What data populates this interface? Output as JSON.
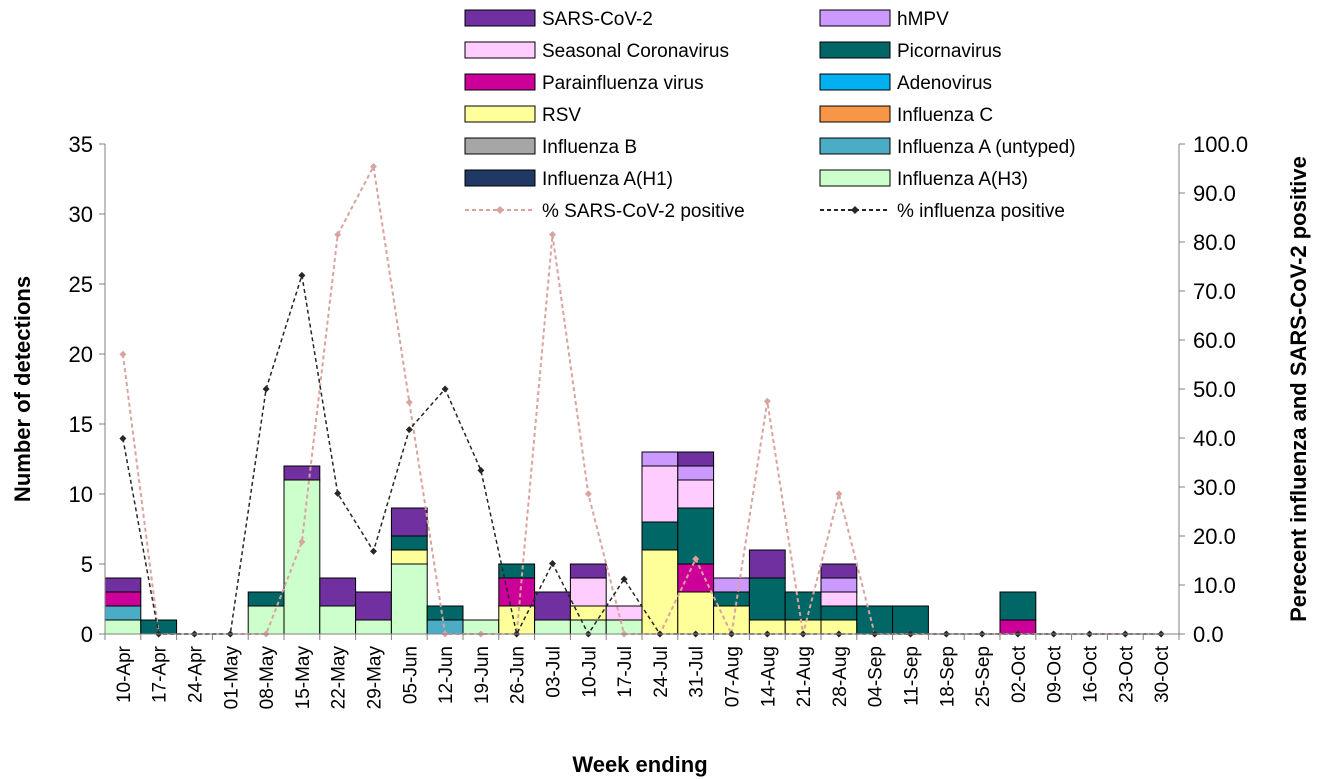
{
  "chart_data": {
    "type": "bar",
    "stacked": true,
    "xlabel": "Week ending",
    "ylabel": "Number of detections",
    "y2label": "Perecent influenza and SARS-CoV-2 positive",
    "ylim": [
      0,
      35
    ],
    "y2lim": [
      0,
      100
    ],
    "yticks": [
      "0",
      "5",
      "10",
      "15",
      "20",
      "25",
      "30",
      "35"
    ],
    "y2ticks": [
      "0.0",
      "10.0",
      "20.0",
      "30.0",
      "40.0",
      "50.0",
      "60.0",
      "70.0",
      "80.0",
      "90.0",
      "100.0"
    ],
    "grid": false,
    "legend_position": "top",
    "categories": [
      "10-Apr",
      "17-Apr",
      "24-Apr",
      "01-May",
      "08-May",
      "15-May",
      "22-May",
      "29-May",
      "05-Jun",
      "12-Jun",
      "19-Jun",
      "26-Jun",
      "03-Jul",
      "10-Jul",
      "17-Jul",
      "24-Jul",
      "31-Jul",
      "07-Aug",
      "14-Aug",
      "21-Aug",
      "28-Aug",
      "04-Sep",
      "11-Sep",
      "18-Sep",
      "25-Sep",
      "02-Oct",
      "09-Oct",
      "16-Oct",
      "23-Oct",
      "30-Oct"
    ],
    "series": [
      {
        "name": "Influenza A(H3)",
        "color": "#ccffcc",
        "values": [
          1,
          0,
          0,
          0,
          2,
          11,
          2,
          1,
          5,
          0,
          1,
          0,
          1,
          1,
          1,
          0,
          0,
          0,
          0,
          0,
          0,
          0,
          0,
          0,
          0,
          0,
          0,
          0,
          0,
          0
        ]
      },
      {
        "name": "Influenza A(H1)",
        "color": "#1f3864",
        "values": [
          0,
          0,
          0,
          0,
          0,
          0,
          0,
          0,
          0,
          0,
          0,
          0,
          0,
          0,
          0,
          0,
          0,
          0,
          0,
          0,
          0,
          0,
          0,
          0,
          0,
          0,
          0,
          0,
          0,
          0
        ]
      },
      {
        "name": "Influenza A (untyped)",
        "color": "#4bacc6",
        "values": [
          1,
          0,
          0,
          0,
          0,
          0,
          0,
          0,
          0,
          1,
          0,
          0,
          0,
          0,
          0,
          0,
          0,
          0,
          0,
          0,
          0,
          0,
          0,
          0,
          0,
          0,
          0,
          0,
          0,
          0
        ]
      },
      {
        "name": "Influenza B",
        "color": "#a6a6a6",
        "values": [
          0,
          0,
          0,
          0,
          0,
          0,
          0,
          0,
          0,
          0,
          0,
          0,
          0,
          0,
          0,
          0,
          0,
          0,
          0,
          0,
          0,
          0,
          0,
          0,
          0,
          0,
          0,
          0,
          0,
          0
        ]
      },
      {
        "name": "Influenza C",
        "color": "#f79646",
        "values": [
          0,
          0,
          0,
          0,
          0,
          0,
          0,
          0,
          0,
          0,
          0,
          0,
          0,
          0,
          0,
          0,
          0,
          0,
          0,
          0,
          0,
          0,
          0,
          0,
          0,
          0,
          0,
          0,
          0,
          0
        ]
      },
      {
        "name": "RSV",
        "color": "#ffff99",
        "values": [
          0,
          0,
          0,
          0,
          0,
          0,
          0,
          0,
          1,
          0,
          0,
          2,
          0,
          1,
          0,
          6,
          3,
          2,
          1,
          1,
          1,
          0,
          0,
          0,
          0,
          0,
          0,
          0,
          0,
          0
        ]
      },
      {
        "name": "Adenovirus",
        "color": "#00b0f0",
        "values": [
          0,
          0,
          0,
          0,
          0,
          0,
          0,
          0,
          0,
          0,
          0,
          0,
          0,
          0,
          0,
          0,
          0,
          0,
          0,
          0,
          0,
          0,
          0,
          0,
          0,
          0,
          0,
          0,
          0,
          0
        ]
      },
      {
        "name": "Parainfluenza virus",
        "color": "#cc0099",
        "values": [
          1,
          0,
          0,
          0,
          0,
          0,
          0,
          0,
          0,
          0,
          0,
          2,
          0,
          0,
          0,
          0,
          2,
          0,
          0,
          0,
          0,
          0,
          0,
          0,
          0,
          1,
          0,
          0,
          0,
          0
        ]
      },
      {
        "name": "Picornavirus",
        "color": "#006666",
        "values": [
          0,
          1,
          0,
          0,
          1,
          0,
          0,
          0,
          1,
          1,
          0,
          1,
          0,
          0,
          0,
          2,
          4,
          1,
          3,
          2,
          1,
          2,
          2,
          0,
          0,
          2,
          0,
          0,
          0,
          0
        ]
      },
      {
        "name": "Seasonal Coronavirus",
        "color": "#ffccff",
        "values": [
          0,
          0,
          0,
          0,
          0,
          0,
          0,
          0,
          0,
          0,
          0,
          0,
          0,
          2,
          1,
          4,
          2,
          0,
          0,
          0,
          1,
          0,
          0,
          0,
          0,
          0,
          0,
          0,
          0,
          0
        ]
      },
      {
        "name": "hMPV",
        "color": "#cc99ff",
        "values": [
          0,
          0,
          0,
          0,
          0,
          0,
          0,
          0,
          0,
          0,
          0,
          0,
          0,
          0,
          0,
          1,
          1,
          1,
          0,
          0,
          1,
          0,
          0,
          0,
          0,
          0,
          0,
          0,
          0,
          0
        ]
      },
      {
        "name": "SARS-CoV-2",
        "color": "#7030a0",
        "values": [
          1,
          0,
          0,
          0,
          0,
          1,
          2,
          2,
          2,
          0,
          0,
          0,
          2,
          1,
          0,
          0,
          1,
          0,
          2,
          0,
          1,
          0,
          0,
          0,
          0,
          0,
          0,
          0,
          0,
          0
        ]
      }
    ],
    "lines": [
      {
        "name": "% SARS-CoV-2 positive",
        "color": "#d9a3a0",
        "axis": "right",
        "values": [
          57.1,
          0,
          0,
          0,
          0,
          18.8,
          81.5,
          95.4,
          47.3,
          0,
          0,
          0,
          81.5,
          28.6,
          0,
          0,
          15.3,
          0,
          47.5,
          0,
          28.6,
          0,
          0,
          0,
          0,
          0,
          0,
          0,
          0,
          0
        ]
      },
      {
        "name": "% influenza positive",
        "color": "#262626",
        "axis": "right",
        "values": [
          39.9,
          0,
          0,
          0,
          50.0,
          73.2,
          28.7,
          16.9,
          41.7,
          50.0,
          33.4,
          0,
          14.4,
          0,
          11.2,
          0,
          0,
          0,
          0,
          0,
          0,
          0,
          0,
          0,
          0,
          0,
          0,
          0,
          0,
          0
        ]
      }
    ],
    "legend": [
      "SARS-CoV-2",
      "hMPV",
      "Seasonal Coronavirus",
      "Picornavirus",
      "Parainfluenza virus",
      "Adenovirus",
      "RSV",
      "Influenza C",
      "Influenza B",
      "Influenza A (untyped)",
      "Influenza A(H1)",
      "Influenza A(H3)",
      "% SARS-CoV-2 positive",
      "% influenza positive"
    ]
  }
}
